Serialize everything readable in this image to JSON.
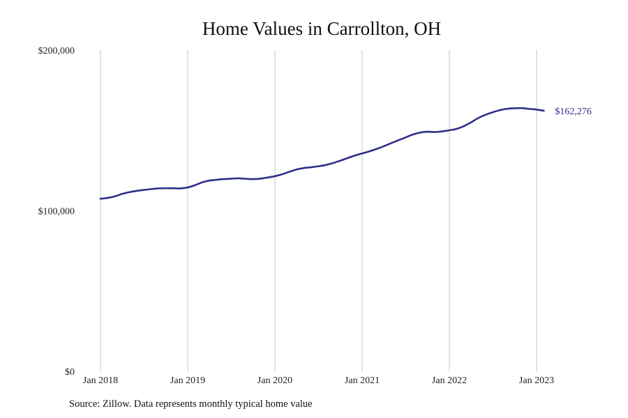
{
  "chart_data": {
    "type": "line",
    "title": "Home Values in Carrollton, OH",
    "xlabel": "",
    "ylabel": "",
    "ylim": [
      0,
      200000
    ],
    "xlim": [
      "2018-01",
      "2023-02"
    ],
    "y_ticks": [
      "$0",
      "$100,000",
      "$200,000"
    ],
    "y_tick_values": [
      0,
      100000,
      200000
    ],
    "x_ticks": [
      "Jan 2018",
      "Jan 2019",
      "Jan 2020",
      "Jan 2021",
      "Jan 2022",
      "Jan 2023"
    ],
    "x_tick_values": [
      "2018-01",
      "2019-01",
      "2020-01",
      "2021-01",
      "2022-01",
      "2023-01"
    ],
    "grid": "vertical",
    "legend": "none",
    "series": [
      {
        "color": "#2e2e8a",
        "x": [
          "2018-01",
          "2018-02",
          "2018-03",
          "2018-04",
          "2018-05",
          "2018-06",
          "2018-07",
          "2018-08",
          "2018-09",
          "2018-10",
          "2018-11",
          "2018-12",
          "2019-01",
          "2019-02",
          "2019-03",
          "2019-04",
          "2019-05",
          "2019-06",
          "2019-07",
          "2019-08",
          "2019-09",
          "2019-10",
          "2019-11",
          "2019-12",
          "2020-01",
          "2020-02",
          "2020-03",
          "2020-04",
          "2020-05",
          "2020-06",
          "2020-07",
          "2020-08",
          "2020-09",
          "2020-10",
          "2020-11",
          "2020-12",
          "2021-01",
          "2021-02",
          "2021-03",
          "2021-04",
          "2021-05",
          "2021-06",
          "2021-07",
          "2021-08",
          "2021-09",
          "2021-10",
          "2021-11",
          "2021-12",
          "2022-01",
          "2022-02",
          "2022-03",
          "2022-04",
          "2022-05",
          "2022-06",
          "2022-07",
          "2022-08",
          "2022-09",
          "2022-10",
          "2022-11",
          "2022-12",
          "2023-01",
          "2023-02"
        ],
        "y": [
          107500,
          108000,
          109000,
          110500,
          111600,
          112400,
          113000,
          113500,
          113900,
          114000,
          114000,
          113900,
          114500,
          115900,
          117700,
          118800,
          119300,
          119700,
          120000,
          120200,
          119900,
          119700,
          120000,
          120700,
          121500,
          122700,
          124300,
          125700,
          126600,
          127100,
          127700,
          128500,
          129700,
          131200,
          132800,
          134400,
          135700,
          137000,
          138500,
          140200,
          142100,
          143900,
          145700,
          147500,
          148700,
          149200,
          149000,
          149400,
          150100,
          151000,
          152700,
          155100,
          157800,
          159800,
          161400,
          162700,
          163500,
          163800,
          163900,
          163400,
          163000,
          162276
        ]
      }
    ],
    "annotations": [
      {
        "text": "$162,276",
        "x": "2023-02",
        "y": 162276
      }
    ]
  },
  "source": "Source: Zillow. Data represents monthly typical home value"
}
